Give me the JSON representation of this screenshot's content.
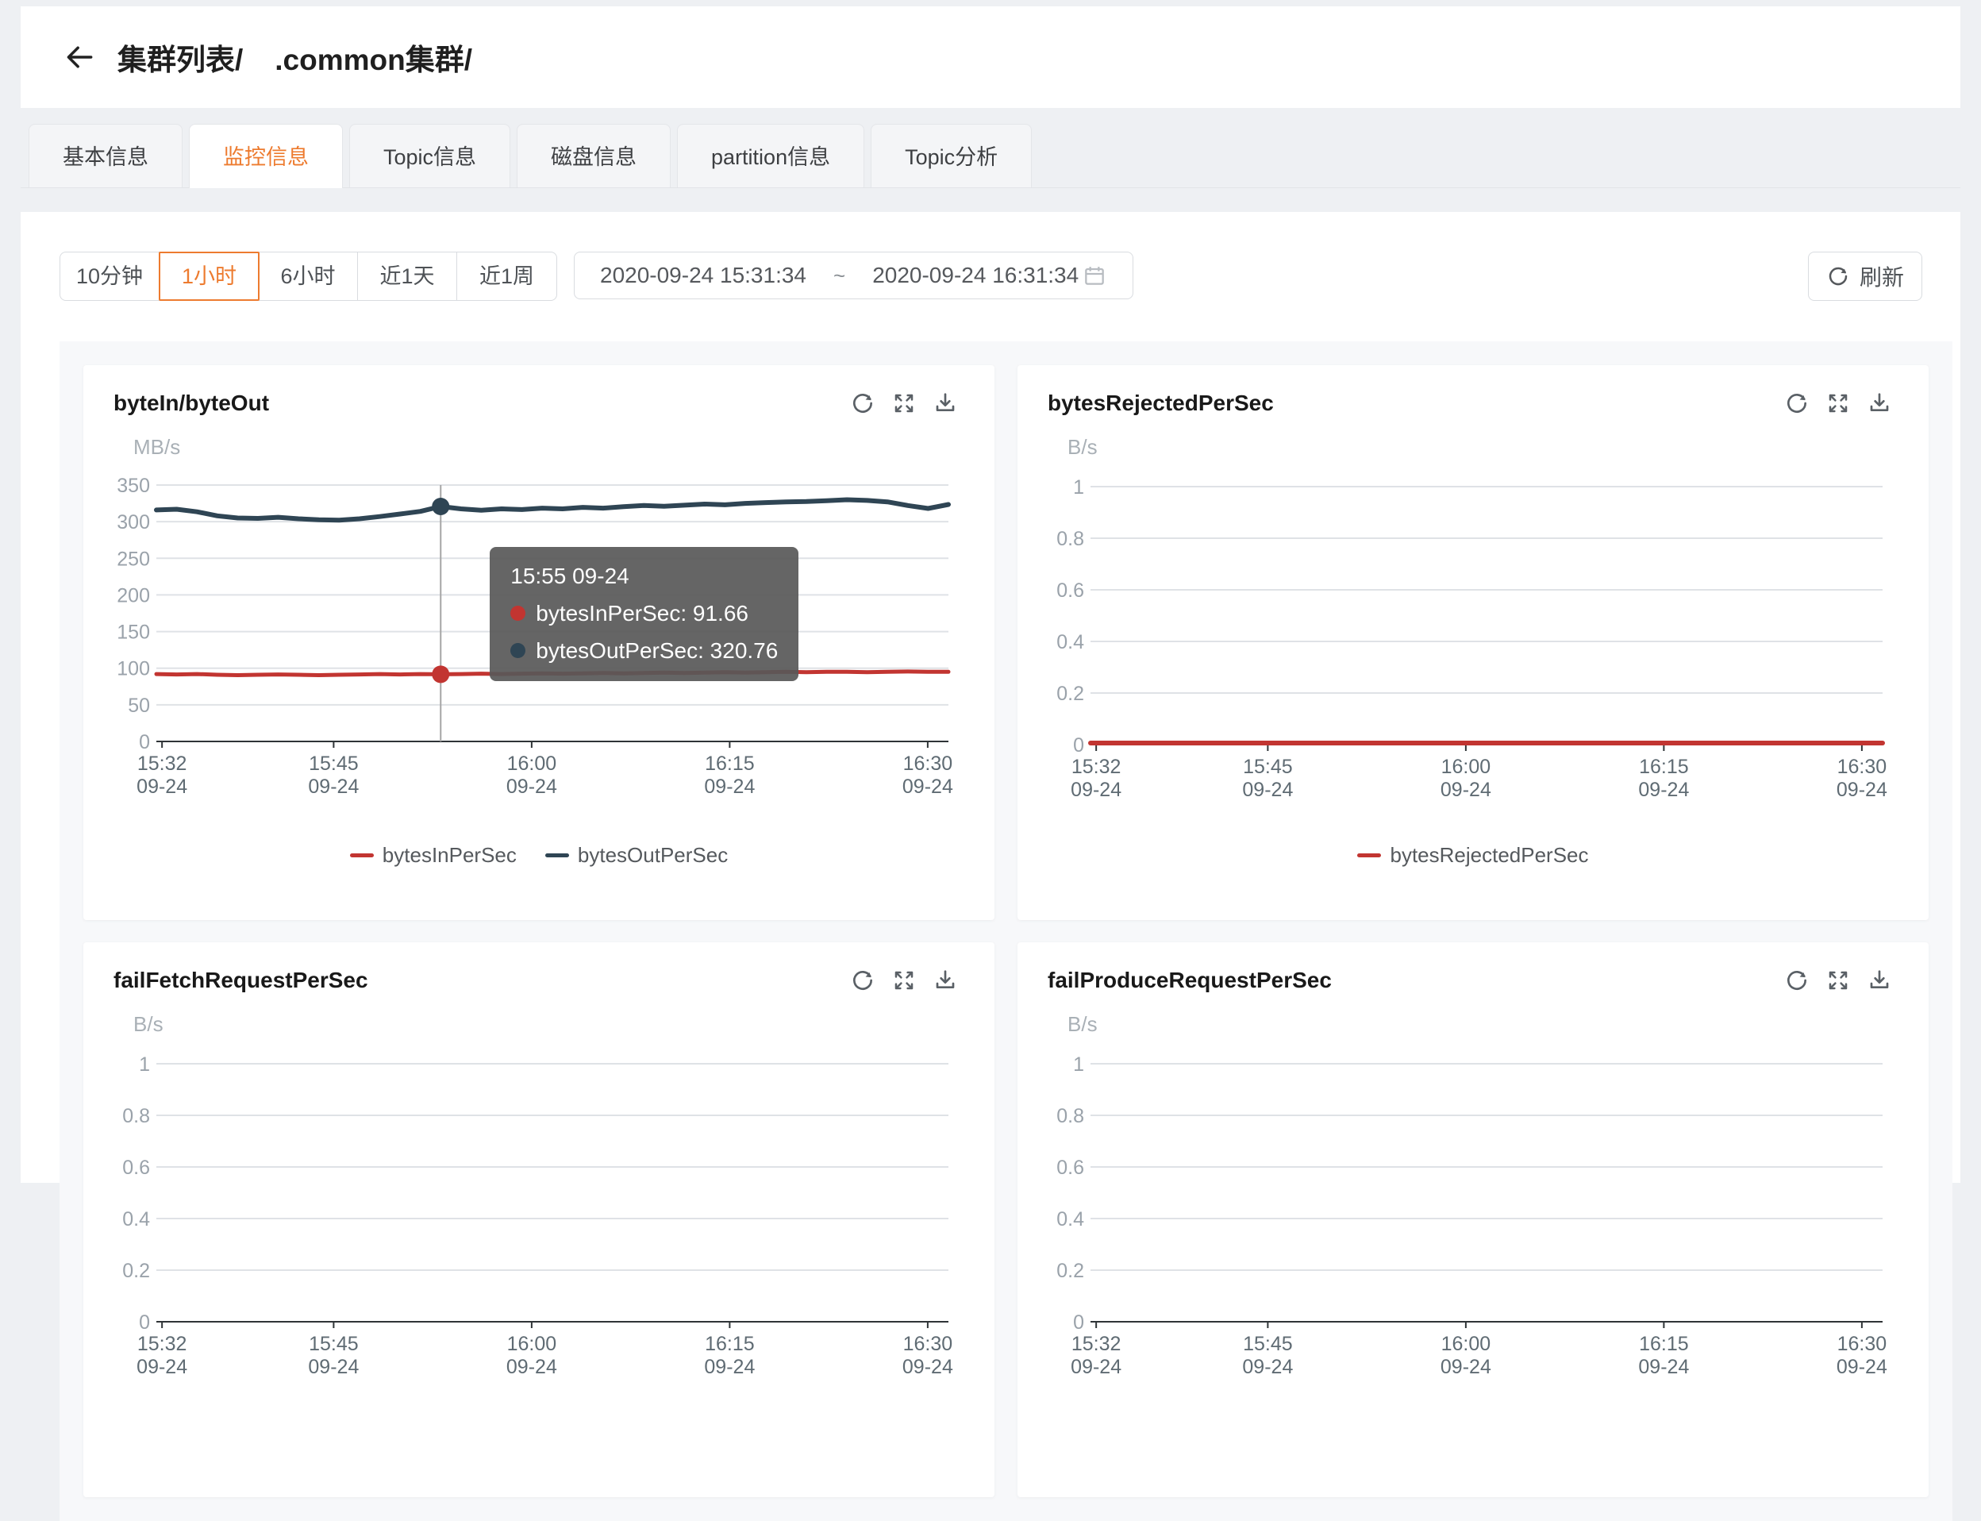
{
  "header": {
    "title_prefix": "集群列表/",
    "title_cluster": ".common集群/"
  },
  "tabs": [
    {
      "key": "basic-info",
      "label": "基本信息",
      "active": false
    },
    {
      "key": "monitor-info",
      "label": "监控信息",
      "active": true
    },
    {
      "key": "topic-info",
      "label": "Topic信息",
      "active": false
    },
    {
      "key": "disk-info",
      "label": "磁盘信息",
      "active": false
    },
    {
      "key": "partition-info",
      "label": "partition信息",
      "active": false
    },
    {
      "key": "topic-analysis",
      "label": "Topic分析",
      "active": false
    }
  ],
  "toolbar": {
    "ranges": [
      {
        "key": "10min",
        "label": "10分钟",
        "active": false
      },
      {
        "key": "1hour",
        "label": "1小时",
        "active": true
      },
      {
        "key": "6hour",
        "label": "6小时",
        "active": false
      },
      {
        "key": "1day",
        "label": "近1天",
        "active": false
      },
      {
        "key": "1week",
        "label": "近1周",
        "active": false
      }
    ],
    "date_start": "2020-09-24 15:31:34",
    "date_separator": "~",
    "date_end": "2020-09-24 16:31:34",
    "refresh_label": "刷新"
  },
  "colors": {
    "accent_orange": "#ED7B2F",
    "series_red": "#c23531",
    "series_navy": "#2f4554",
    "grid_line": "#dfe2e6",
    "axis_line": "#2f3437",
    "y_label": "#9aa2aa",
    "x_label": "#5f6b73",
    "crosshair": "#a6a6a6"
  },
  "time_axis": {
    "span_min": 60,
    "ticks": [
      {
        "t": 0.43,
        "time": "15:32",
        "date": "09-24"
      },
      {
        "t": 13.43,
        "time": "15:45",
        "date": "09-24"
      },
      {
        "t": 28.43,
        "time": "16:00",
        "date": "09-24"
      },
      {
        "t": 43.43,
        "time": "16:15",
        "date": "09-24"
      },
      {
        "t": 58.43,
        "time": "16:30",
        "date": "09-24"
      }
    ]
  },
  "card_icons": [
    {
      "key": "refresh",
      "name": "refresh-chart-icon"
    },
    {
      "key": "fullscreen",
      "name": "fullscreen-icon"
    },
    {
      "key": "download",
      "name": "download-icon"
    }
  ],
  "chart_data": [
    {
      "type": "line",
      "title": "byteIn/byteOut",
      "unit": "MB/s",
      "ylim": [
        0,
        350
      ],
      "y_ticks": [
        "350",
        "300",
        "250",
        "200",
        "150",
        "100",
        "50",
        "0"
      ],
      "series": [
        {
          "name": "bytesInPerSec",
          "color": "#c23531",
          "width": 5,
          "values": [
            92,
            91.5,
            92,
            91,
            90.5,
            91,
            91.5,
            91,
            90.5,
            91,
            91.5,
            92,
            91.5,
            92,
            91.66,
            92,
            92.5,
            92,
            92.5,
            93,
            92.5,
            93,
            93.5,
            93,
            93.5,
            94,
            93.5,
            94,
            94.5,
            94,
            94.5,
            95,
            94.5,
            95,
            95,
            94.5,
            95,
            95.5,
            95,
            95
          ]
        },
        {
          "name": "bytesOutPerSec",
          "color": "#2f4554",
          "width": 6,
          "values": [
            316,
            317,
            313.5,
            308,
            305,
            304.5,
            306,
            304,
            302.5,
            302,
            304,
            307,
            310.5,
            314,
            320.76,
            317.5,
            315.5,
            317.5,
            316.5,
            318.5,
            317.5,
            319.5,
            318.5,
            320.5,
            322,
            321,
            322.5,
            324,
            323,
            325,
            326,
            327,
            327.5,
            328.5,
            330,
            329,
            327,
            322,
            318,
            323.5
          ]
        }
      ],
      "legend": [
        "bytesInPerSec",
        "bytesOutPerSec"
      ],
      "tooltip": {
        "point_index": 14,
        "time": "15:55 09-24",
        "items": [
          {
            "name": "bytesInPerSec",
            "value": "91.66",
            "color": "#c23531"
          },
          {
            "name": "bytesOutPerSec",
            "value": "320.76",
            "color": "#2f4554"
          }
        ]
      }
    },
    {
      "type": "line",
      "title": "bytesRejectedPerSec",
      "unit": "B/s",
      "ylim": [
        0,
        1
      ],
      "y_ticks": [
        "1",
        "0.8",
        "0.6",
        "0.4",
        "0.2",
        "0"
      ],
      "series": [
        {
          "name": "bytesRejectedPerSec",
          "color": "#c23531",
          "width": 6,
          "constant": 0
        }
      ],
      "legend": [
        "bytesRejectedPerSec"
      ]
    },
    {
      "type": "line",
      "title": "failFetchRequestPerSec",
      "unit": "B/s",
      "ylim": [
        0,
        1
      ],
      "y_ticks": [
        "1",
        "0.8",
        "0.6",
        "0.4",
        "0.2",
        "0"
      ],
      "series": [],
      "legend": []
    },
    {
      "type": "line",
      "title": "failProduceRequestPerSec",
      "unit": "B/s",
      "ylim": [
        0,
        1
      ],
      "y_ticks": [
        "1",
        "0.8",
        "0.6",
        "0.4",
        "0.2",
        "0"
      ],
      "series": [],
      "legend": []
    }
  ]
}
